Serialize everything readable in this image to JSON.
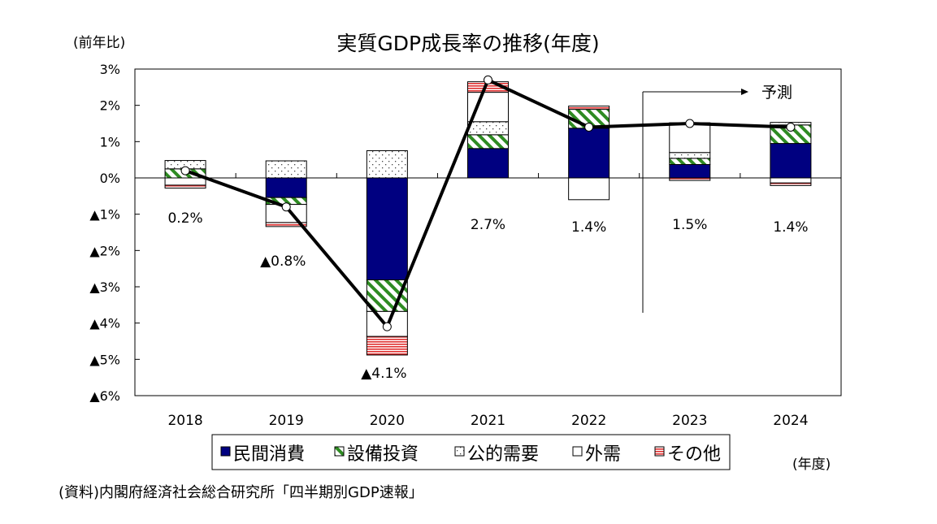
{
  "chart_data": {
    "type": "bar",
    "subtype": "stacked-bar-with-line",
    "title": "実質GDP成長率の推移(年度)",
    "ylabel": "(前年比)",
    "xlabel": "(年度)",
    "source": "(資料)内閣府経済社会総合研究所「四半期別GDP速報」",
    "ylim": [
      -6,
      3
    ],
    "yticks": [
      3,
      2,
      1,
      0,
      -1,
      -2,
      -3,
      -4,
      -5,
      -6
    ],
    "ytick_labels": [
      "3%",
      "2%",
      "1%",
      "0%",
      "▲1%",
      "▲2%",
      "▲3%",
      "▲4%",
      "▲5%",
      "▲6%"
    ],
    "categories": [
      "2018",
      "2019",
      "2020",
      "2021",
      "2022",
      "2023",
      "2024"
    ],
    "series": [
      {
        "name": "民間消費",
        "color": "#000080",
        "pattern": "solid",
        "values": [
          0.0,
          -0.54,
          -2.81,
          0.81,
          1.37,
          0.37,
          0.95
        ]
      },
      {
        "name": "設備投資",
        "color": "#2e8b22",
        "pattern": "diagonal-hatch",
        "values": [
          0.25,
          -0.19,
          -0.87,
          0.38,
          0.52,
          0.17,
          0.51
        ]
      },
      {
        "name": "公的需要",
        "color": "#555555",
        "pattern": "dots",
        "values": [
          0.23,
          0.47,
          0.75,
          0.36,
          0.0,
          0.16,
          0.07
        ]
      },
      {
        "name": "外需",
        "color": "#ffffff",
        "pattern": "white",
        "values": [
          -0.2,
          -0.5,
          -0.69,
          0.81,
          -0.6,
          0.82,
          -0.14
        ]
      },
      {
        "name": "その他",
        "color": "#e03030",
        "pattern": "horizontal-stripes",
        "values": [
          -0.08,
          -0.11,
          -0.51,
          0.29,
          0.09,
          -0.07,
          -0.07
        ]
      }
    ],
    "line": {
      "values": [
        0.2,
        -0.8,
        -4.1,
        2.7,
        1.4,
        1.5,
        1.4
      ],
      "color": "#000000",
      "marker": "open-circle"
    },
    "data_labels": [
      "0.2%",
      "▲0.8%",
      "▲4.1%",
      "2.7%",
      "1.4%",
      "1.5%",
      "1.4%"
    ],
    "annotation": {
      "text": "予測",
      "from_category": "2023"
    },
    "legend": {
      "placement": "bottom"
    },
    "grid": false
  }
}
